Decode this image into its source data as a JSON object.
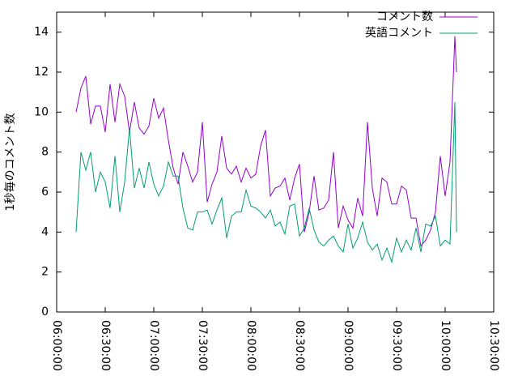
{
  "chart_data": {
    "type": "line",
    "ylabel": "1秒毎のコメント数",
    "x": [
      "06:12:00",
      "06:15:00",
      "06:18:00",
      "06:21:00",
      "06:24:00",
      "06:27:00",
      "06:30:00",
      "06:33:00",
      "06:36:00",
      "06:39:00",
      "06:42:00",
      "06:45:00",
      "06:48:00",
      "06:51:00",
      "06:54:00",
      "06:57:00",
      "07:00:00",
      "07:03:00",
      "07:06:00",
      "07:09:00",
      "07:12:00",
      "07:15:00",
      "07:18:00",
      "07:21:00",
      "07:24:00",
      "07:27:00",
      "07:30:00",
      "07:33:00",
      "07:36:00",
      "07:39:00",
      "07:42:00",
      "07:45:00",
      "07:48:00",
      "07:51:00",
      "07:54:00",
      "07:57:00",
      "08:00:00",
      "08:03:00",
      "08:06:00",
      "08:09:00",
      "08:12:00",
      "08:15:00",
      "08:18:00",
      "08:21:00",
      "08:24:00",
      "08:27:00",
      "08:30:00",
      "08:33:00",
      "08:36:00",
      "08:39:00",
      "08:42:00",
      "08:45:00",
      "08:48:00",
      "08:51:00",
      "08:54:00",
      "08:57:00",
      "09:00:00",
      "09:03:00",
      "09:06:00",
      "09:09:00",
      "09:12:00",
      "09:15:00",
      "09:18:00",
      "09:21:00",
      "09:24:00",
      "09:27:00",
      "09:30:00",
      "09:33:00",
      "09:36:00",
      "09:39:00",
      "09:42:00",
      "09:45:00",
      "09:48:00",
      "09:51:00",
      "09:54:00",
      "09:57:00",
      "10:00:00",
      "10:03:00",
      "10:06:00",
      "10:07:00"
    ],
    "series": [
      {
        "name": "コメント数",
        "color": "#9400d3",
        "values": [
          10,
          11.2,
          11.8,
          9.4,
          10.3,
          10.3,
          9,
          11.4,
          9.5,
          11.4,
          10.8,
          9,
          10.5,
          9.2,
          8.9,
          9.3,
          10.7,
          9.7,
          10.2,
          8.6,
          7.2,
          6.4,
          8,
          7.3,
          6.5,
          7,
          9.5,
          5.5,
          6.4,
          7,
          8.8,
          7.2,
          6.9,
          7.3,
          6.5,
          7.2,
          6.7,
          6.9,
          8.3,
          9.1,
          5.8,
          6.2,
          6.3,
          6.7,
          5.6,
          6.7,
          7.4,
          4,
          5,
          6.8,
          5.1,
          5.2,
          5.6,
          8,
          4.2,
          5.3,
          4.6,
          4.2,
          5.7,
          4.8,
          9.5,
          6.2,
          4.8,
          6.7,
          6.5,
          5.4,
          5.4,
          6.3,
          6.1,
          4.7,
          4.7,
          3.3,
          3.6,
          4.1,
          5,
          7.8,
          5.8,
          7.5,
          13.8,
          12
        ]
      },
      {
        "name": "英語コメント",
        "color": "#009e73",
        "values": [
          4,
          8,
          7.1,
          8,
          6,
          7,
          6.5,
          5.2,
          7.8,
          5,
          6.5,
          9.2,
          6.2,
          7.2,
          6.2,
          7.5,
          6.4,
          5.8,
          6.3,
          7.5,
          6.8,
          6.8,
          5.2,
          4.2,
          4.1,
          5,
          5,
          5.1,
          4.4,
          5.1,
          5.7,
          3.7,
          4.8,
          5,
          5,
          6.1,
          5.3,
          5.2,
          5,
          4.7,
          5.1,
          4.3,
          4.5,
          3.9,
          5.3,
          5.4,
          3.8,
          4.2,
          5.2,
          4.1,
          3.5,
          3.3,
          3.6,
          3.8,
          3.3,
          3,
          4.4,
          3.2,
          3.7,
          4.5,
          3.5,
          3.1,
          3.4,
          2.6,
          3.2,
          2.5,
          3.7,
          3,
          3.6,
          3.1,
          4.2,
          3,
          4.4,
          4.3,
          4.8,
          3.3,
          3.6,
          3.4,
          10.5,
          4
        ]
      }
    ],
    "xlim": [
      "06:00:00",
      "10:30:00"
    ],
    "xticks": [
      "06:00:00",
      "06:30:00",
      "07:00:00",
      "07:30:00",
      "08:00:00",
      "08:30:00",
      "09:00:00",
      "09:30:00",
      "10:00:00",
      "10:30:00"
    ],
    "ylim": [
      0,
      15
    ],
    "yticks": [
      0,
      2,
      4,
      6,
      8,
      10,
      12,
      14
    ],
    "legend": "top-right"
  }
}
